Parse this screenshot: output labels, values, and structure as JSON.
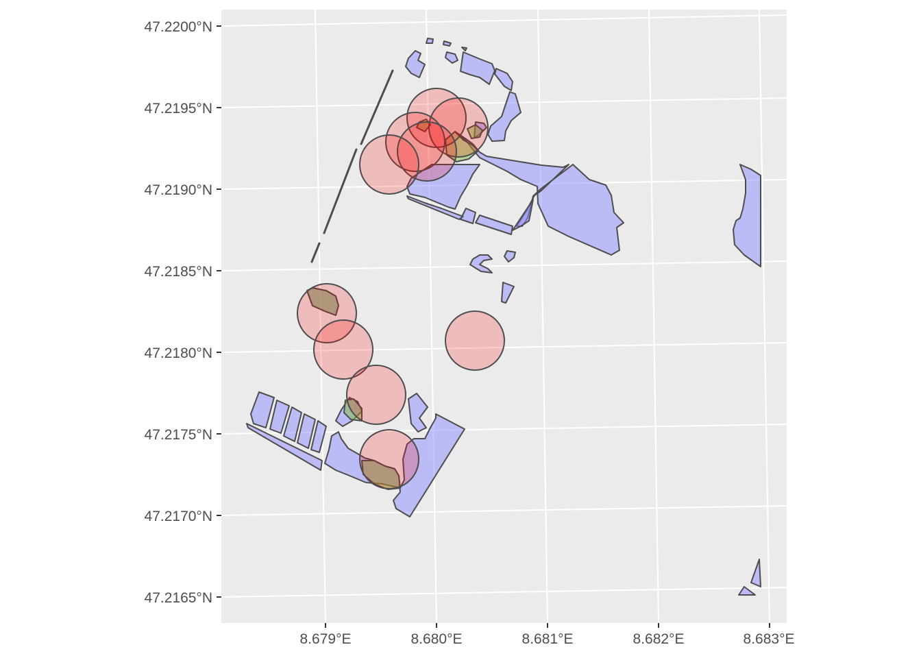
{
  "map": {
    "x_tick_labels": [
      "8.679°E",
      "8.680°E",
      "8.681°E",
      "8.682°E",
      "8.683°E"
    ],
    "y_tick_labels": [
      "47.2200°N",
      "47.2195°N",
      "47.2190°N",
      "47.2185°N",
      "47.2180°N",
      "47.2175°N",
      "47.2170°N",
      "47.2165°N"
    ],
    "colors": {
      "panel": "#ebebeb",
      "grid": "#ffffff",
      "polygon_fill": "#8c8cff",
      "buffer_fill": "#ff0000",
      "intersection_fill": "#7fbf3f",
      "outline": "#4d4d4d"
    }
  }
}
